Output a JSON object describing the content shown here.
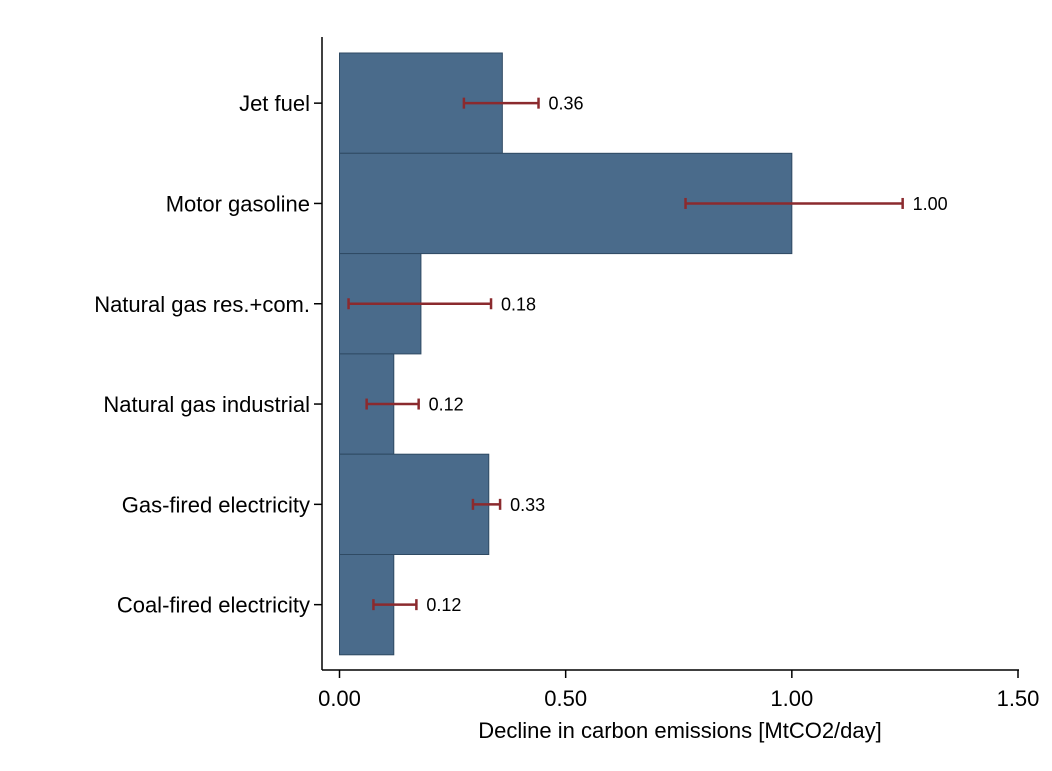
{
  "chart_data": {
    "type": "bar",
    "orientation": "horizontal",
    "categories": [
      "Jet fuel",
      "Motor gasoline",
      "Natural gas res.+com.",
      "Natural gas industrial",
      "Gas-fired electricity",
      "Coal-fired electricity"
    ],
    "values": [
      0.36,
      1.0,
      0.18,
      0.12,
      0.33,
      0.12
    ],
    "value_labels": [
      "0.36",
      "1.00",
      "0.18",
      "0.12",
      "0.33",
      "0.12"
    ],
    "error_low": [
      0.275,
      0.765,
      0.02,
      0.06,
      0.295,
      0.075
    ],
    "error_high": [
      0.44,
      1.245,
      0.335,
      0.175,
      0.355,
      0.17
    ],
    "xlabel": "Decline in carbon emissions [MtCO2/day]",
    "ylabel": "",
    "xlim": [
      0,
      1.5
    ],
    "xticks": [
      0,
      0.5,
      1.0,
      1.5
    ],
    "xtick_labels": [
      "0.00",
      "0.50",
      "1.00",
      "1.50"
    ],
    "grid": false,
    "colors": {
      "bar": "#4a6b8b",
      "bar_edge": "#2f4a63",
      "error": "#8b2a2e"
    }
  }
}
